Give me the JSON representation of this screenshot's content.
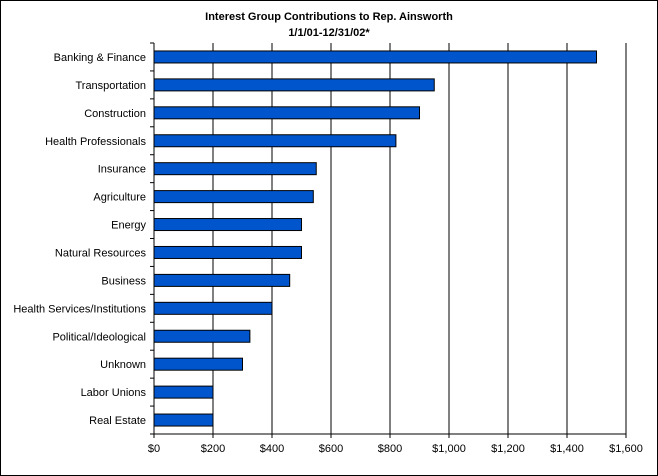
{
  "chart_data": {
    "type": "bar",
    "orientation": "horizontal",
    "title": "Interest Group Contributions to Rep. Ainsworth",
    "subtitle": "1/1/01-12/31/02*",
    "categories": [
      "Banking & Finance",
      "Transportation",
      "Construction",
      "Health Professionals",
      "Insurance",
      "Agriculture",
      "Energy",
      "Natural Resources",
      "Business",
      "Health Services/Institutions",
      "Political/Ideological",
      "Unknown",
      "Labor Unions",
      "Real Estate"
    ],
    "values": [
      1500,
      950,
      900,
      820,
      550,
      540,
      500,
      500,
      460,
      400,
      325,
      300,
      200,
      200
    ],
    "xlim": [
      0,
      1600
    ],
    "xticks": [
      0,
      200,
      400,
      600,
      800,
      1000,
      1200,
      1400,
      1600
    ],
    "xtick_labels": [
      "$0",
      "$200",
      "$400",
      "$600",
      "$800",
      "$1,000",
      "$1,200",
      "$1,400",
      "$1,600"
    ],
    "grid": "vertical",
    "legend": "none",
    "bar_color": "#0055CC"
  }
}
